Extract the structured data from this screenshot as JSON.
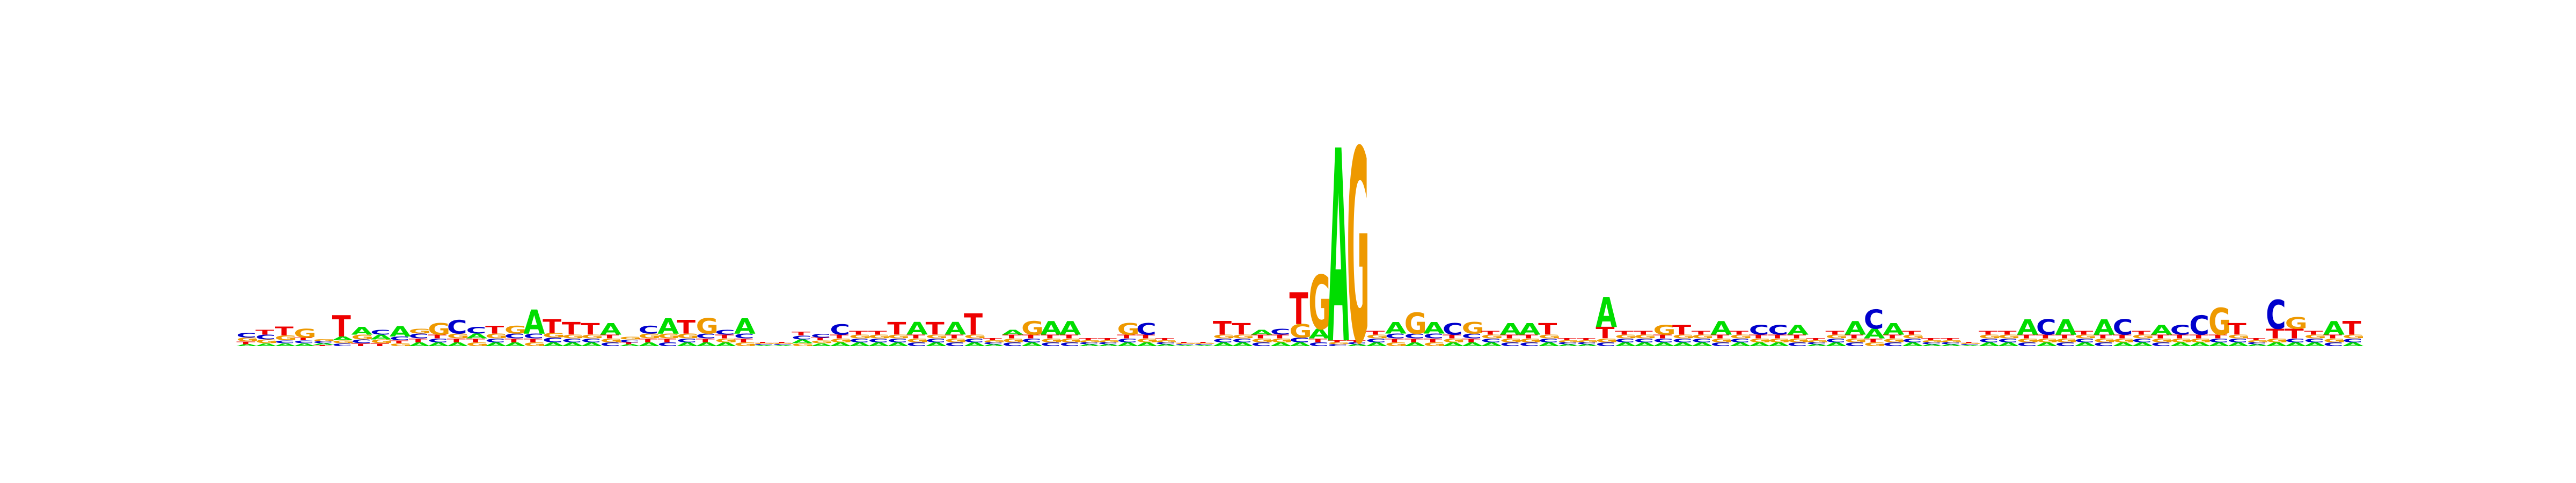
{
  "chart_data": {
    "type": "sequence-logo",
    "alphabet": [
      "A",
      "C",
      "G",
      "T"
    ],
    "colors": {
      "A": "#00dd00",
      "C": "#0000cc",
      "G": "#ee9900",
      "T": "#ee0000"
    },
    "y_unit": "bits",
    "ylim": [
      0,
      2
    ],
    "positions": [
      {
        "A": 0.02,
        "C": 0.05,
        "G": 0.04,
        "T": 0.03
      },
      {
        "A": 0.03,
        "C": 0.05,
        "G": 0.04,
        "T": 0.05
      },
      {
        "A": 0.03,
        "C": 0.03,
        "G": 0.05,
        "T": 0.09
      },
      {
        "A": 0.03,
        "C": 0.03,
        "G": 0.09,
        "T": 0.03
      },
      {
        "A": 0.02,
        "C": 0.02,
        "G": 0.02,
        "T": 0.01
      },
      {
        "A": 0.04,
        "C": 0.03,
        "G": 0.03,
        "T": 0.22
      },
      {
        "A": 0.08,
        "C": 0.04,
        "G": 0.05,
        "T": 0.03
      },
      {
        "A": 0.05,
        "C": 0.05,
        "G": 0.04,
        "T": 0.03
      },
      {
        "A": 0.11,
        "C": 0.04,
        "G": 0.03,
        "T": 0.03
      },
      {
        "A": 0.04,
        "C": 0.05,
        "G": 0.05,
        "T": 0.04
      },
      {
        "A": 0.04,
        "C": 0.04,
        "G": 0.12,
        "T": 0.04
      },
      {
        "A": 0.04,
        "C": 0.14,
        "G": 0.05,
        "T": 0.04
      },
      {
        "A": 0.05,
        "C": 0.07,
        "G": 0.04,
        "T": 0.04
      },
      {
        "A": 0.04,
        "C": 0.04,
        "G": 0.05,
        "T": 0.08
      },
      {
        "A": 0.04,
        "C": 0.05,
        "G": 0.08,
        "T": 0.04
      },
      {
        "A": 0.25,
        "C": 0.05,
        "G": 0.04,
        "T": 0.04
      },
      {
        "A": 0.04,
        "C": 0.05,
        "G": 0.05,
        "T": 0.14
      },
      {
        "A": 0.04,
        "C": 0.04,
        "G": 0.04,
        "T": 0.13
      },
      {
        "A": 0.04,
        "C": 0.04,
        "G": 0.04,
        "T": 0.12
      },
      {
        "A": 0.12,
        "C": 0.04,
        "G": 0.04,
        "T": 0.04
      },
      {
        "A": 0.02,
        "C": 0.03,
        "G": 0.03,
        "T": 0.02
      },
      {
        "A": 0.04,
        "C": 0.08,
        "G": 0.05,
        "T": 0.04
      },
      {
        "A": 0.16,
        "C": 0.04,
        "G": 0.05,
        "T": 0.04
      },
      {
        "A": 0.04,
        "C": 0.04,
        "G": 0.05,
        "T": 0.14
      },
      {
        "A": 0.04,
        "C": 0.05,
        "G": 0.16,
        "T": 0.04
      },
      {
        "A": 0.04,
        "C": 0.05,
        "G": 0.04,
        "T": 0.04
      },
      {
        "A": 0.16,
        "C": 0.05,
        "G": 0.04,
        "T": 0.04
      },
      {
        "A": 0.01,
        "C": 0.01,
        "G": 0.01,
        "T": 0.01
      },
      {
        "A": 0.01,
        "C": 0.01,
        "G": 0.01,
        "T": 0.01
      },
      {
        "A": 0.04,
        "C": 0.04,
        "G": 0.03,
        "T": 0.04
      },
      {
        "A": 0.03,
        "C": 0.04,
        "G": 0.03,
        "T": 0.03
      },
      {
        "A": 0.04,
        "C": 0.11,
        "G": 0.04,
        "T": 0.04
      },
      {
        "A": 0.04,
        "C": 0.04,
        "G": 0.04,
        "T": 0.04
      },
      {
        "A": 0.04,
        "C": 0.04,
        "G": 0.04,
        "T": 0.04
      },
      {
        "A": 0.04,
        "C": 0.04,
        "G": 0.04,
        "T": 0.13
      },
      {
        "A": 0.13,
        "C": 0.04,
        "G": 0.04,
        "T": 0.04
      },
      {
        "A": 0.04,
        "C": 0.04,
        "G": 0.04,
        "T": 0.13
      },
      {
        "A": 0.13,
        "C": 0.04,
        "G": 0.04,
        "T": 0.04
      },
      {
        "A": 0.04,
        "C": 0.04,
        "G": 0.04,
        "T": 0.22
      },
      {
        "A": 0.02,
        "C": 0.02,
        "G": 0.02,
        "T": 0.02
      },
      {
        "A": 0.05,
        "C": 0.04,
        "G": 0.04,
        "T": 0.04
      },
      {
        "A": 0.04,
        "C": 0.04,
        "G": 0.14,
        "T": 0.04
      },
      {
        "A": 0.14,
        "C": 0.04,
        "G": 0.04,
        "T": 0.04
      },
      {
        "A": 0.14,
        "C": 0.04,
        "G": 0.04,
        "T": 0.04
      },
      {
        "A": 0.02,
        "C": 0.02,
        "G": 0.02,
        "T": 0.02
      },
      {
        "A": 0.02,
        "C": 0.02,
        "G": 0.02,
        "T": 0.02
      },
      {
        "A": 0.04,
        "C": 0.04,
        "G": 0.12,
        "T": 0.04
      },
      {
        "A": 0.04,
        "C": 0.12,
        "G": 0.04,
        "T": 0.04
      },
      {
        "A": 0.02,
        "C": 0.02,
        "G": 0.02,
        "T": 0.02
      },
      {
        "A": 0.01,
        "C": 0.01,
        "G": 0.01,
        "T": 0.01
      },
      {
        "A": 0.01,
        "C": 0.01,
        "G": 0.01,
        "T": 0.01
      },
      {
        "A": 0.04,
        "C": 0.04,
        "G": 0.04,
        "T": 0.14
      },
      {
        "A": 0.04,
        "C": 0.04,
        "G": 0.04,
        "T": 0.12
      },
      {
        "A": 0.05,
        "C": 0.04,
        "G": 0.04,
        "T": 0.04
      },
      {
        "A": 0.04,
        "C": 0.06,
        "G": 0.04,
        "T": 0.04
      },
      {
        "A": 0.04,
        "C": 0.05,
        "G": 0.14,
        "T": 0.33
      },
      {
        "A": 0.1,
        "C": 0.04,
        "G": 0.56,
        "T": 0.04
      },
      {
        "A": 2.0,
        "C": 0.02,
        "G": 0.02,
        "T": 0.02
      },
      {
        "A": 0.02,
        "C": 0.02,
        "G": 2.0,
        "T": 0.02
      },
      {
        "A": 0.04,
        "C": 0.04,
        "G": 0.04,
        "T": 0.04
      },
      {
        "A": 0.12,
        "C": 0.05,
        "G": 0.04,
        "T": 0.04
      },
      {
        "A": 0.04,
        "C": 0.05,
        "G": 0.22,
        "T": 0.04
      },
      {
        "A": 0.12,
        "C": 0.05,
        "G": 0.04,
        "T": 0.04
      },
      {
        "A": 0.04,
        "C": 0.12,
        "G": 0.04,
        "T": 0.04
      },
      {
        "A": 0.04,
        "C": 0.05,
        "G": 0.12,
        "T": 0.04
      },
      {
        "A": 0.04,
        "C": 0.04,
        "G": 0.04,
        "T": 0.04
      },
      {
        "A": 0.12,
        "C": 0.04,
        "G": 0.04,
        "T": 0.04
      },
      {
        "A": 0.12,
        "C": 0.04,
        "G": 0.04,
        "T": 0.04
      },
      {
        "A": 0.04,
        "C": 0.04,
        "G": 0.04,
        "T": 0.12
      },
      {
        "A": 0.02,
        "C": 0.02,
        "G": 0.02,
        "T": 0.02
      },
      {
        "A": 0.02,
        "C": 0.02,
        "G": 0.02,
        "T": 0.02
      },
      {
        "A": 0.31,
        "C": 0.04,
        "G": 0.04,
        "T": 0.12
      },
      {
        "A": 0.04,
        "C": 0.04,
        "G": 0.04,
        "T": 0.04
      },
      {
        "A": 0.04,
        "C": 0.04,
        "G": 0.04,
        "T": 0.04
      },
      {
        "A": 0.04,
        "C": 0.04,
        "G": 0.1,
        "T": 0.04
      },
      {
        "A": 0.04,
        "C": 0.04,
        "G": 0.04,
        "T": 0.1
      },
      {
        "A": 0.04,
        "C": 0.04,
        "G": 0.04,
        "T": 0.04
      },
      {
        "A": 0.14,
        "C": 0.04,
        "G": 0.04,
        "T": 0.04
      },
      {
        "A": 0.04,
        "C": 0.04,
        "G": 0.04,
        "T": 0.04
      },
      {
        "A": 0.04,
        "C": 0.1,
        "G": 0.04,
        "T": 0.04
      },
      {
        "A": 0.04,
        "C": 0.1,
        "G": 0.04,
        "T": 0.04
      },
      {
        "A": 0.1,
        "C": 0.04,
        "G": 0.04,
        "T": 0.04
      },
      {
        "A": 0.02,
        "C": 0.02,
        "G": 0.02,
        "T": 0.02
      },
      {
        "A": 0.04,
        "C": 0.04,
        "G": 0.04,
        "T": 0.04
      },
      {
        "A": 0.14,
        "C": 0.04,
        "G": 0.04,
        "T": 0.04
      },
      {
        "A": 0.1,
        "C": 0.2,
        "G": 0.04,
        "T": 0.04
      },
      {
        "A": 0.12,
        "C": 0.04,
        "G": 0.04,
        "T": 0.04
      },
      {
        "A": 0.04,
        "C": 0.04,
        "G": 0.04,
        "T": 0.04
      },
      {
        "A": 0.02,
        "C": 0.02,
        "G": 0.02,
        "T": 0.02
      },
      {
        "A": 0.02,
        "C": 0.02,
        "G": 0.02,
        "T": 0.02
      },
      {
        "A": 0.01,
        "C": 0.01,
        "G": 0.01,
        "T": 0.01
      },
      {
        "A": 0.04,
        "C": 0.04,
        "G": 0.04,
        "T": 0.04
      },
      {
        "A": 0.04,
        "C": 0.04,
        "G": 0.04,
        "T": 0.04
      },
      {
        "A": 0.16,
        "C": 0.04,
        "G": 0.04,
        "T": 0.04
      },
      {
        "A": 0.04,
        "C": 0.16,
        "G": 0.04,
        "T": 0.04
      },
      {
        "A": 0.16,
        "C": 0.04,
        "G": 0.04,
        "T": 0.04
      },
      {
        "A": 0.04,
        "C": 0.04,
        "G": 0.04,
        "T": 0.04
      },
      {
        "A": 0.16,
        "C": 0.04,
        "G": 0.04,
        "T": 0.04
      },
      {
        "A": 0.04,
        "C": 0.16,
        "G": 0.04,
        "T": 0.04
      },
      {
        "A": 0.04,
        "C": 0.04,
        "G": 0.04,
        "T": 0.04
      },
      {
        "A": 0.1,
        "C": 0.04,
        "G": 0.04,
        "T": 0.04
      },
      {
        "A": 0.04,
        "C": 0.1,
        "G": 0.04,
        "T": 0.04
      },
      {
        "A": 0.04,
        "C": 0.2,
        "G": 0.04,
        "T": 0.04
      },
      {
        "A": 0.04,
        "C": 0.04,
        "G": 0.28,
        "T": 0.04
      },
      {
        "A": 0.04,
        "C": 0.04,
        "G": 0.04,
        "T": 0.12
      },
      {
        "A": 0.02,
        "C": 0.02,
        "G": 0.02,
        "T": 0.02
      },
      {
        "A": 0.04,
        "C": 0.3,
        "G": 0.04,
        "T": 0.1
      },
      {
        "A": 0.04,
        "C": 0.04,
        "G": 0.12,
        "T": 0.1
      },
      {
        "A": 0.04,
        "C": 0.04,
        "G": 0.04,
        "T": 0.04
      },
      {
        "A": 0.14,
        "C": 0.04,
        "G": 0.04,
        "T": 0.04
      },
      {
        "A": 0.04,
        "C": 0.04,
        "G": 0.04,
        "T": 0.14
      }
    ]
  }
}
